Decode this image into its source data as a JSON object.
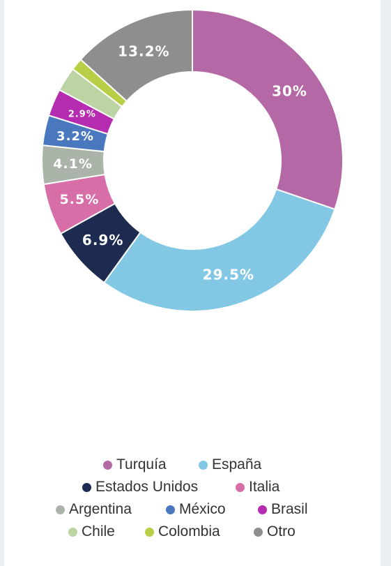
{
  "chart_data": {
    "type": "pie",
    "donut": true,
    "slices": [
      {
        "name": "Turquía",
        "value": 30,
        "label": "30%",
        "color": "#b468a6"
      },
      {
        "name": "España",
        "value": 29.5,
        "label": "29.5%",
        "color": "#82c8e5"
      },
      {
        "name": "Estados Unidos",
        "value": 6.9,
        "label": "6.9%",
        "color": "#1c2b4f"
      },
      {
        "name": "Italia",
        "value": 5.5,
        "label": "5.5%",
        "color": "#d86ea8"
      },
      {
        "name": "Argentina",
        "value": 4.1,
        "label": "4.1%",
        "color": "#aab4a9"
      },
      {
        "name": "México",
        "value": 3.2,
        "label": "3.2%",
        "color": "#4a78bf"
      },
      {
        "name": "Brasil",
        "value": 2.9,
        "label": "2.9%",
        "color": "#b52cb0"
      },
      {
        "name": "Chile",
        "value": 2.6,
        "label": "",
        "color": "#bcd3a4"
      },
      {
        "name": "Colombia",
        "value": 1.3,
        "label": "",
        "color": "#b6cf47"
      },
      {
        "name": "Otro",
        "value": 13.2,
        "label": "13.2%",
        "color": "#8e8e8e"
      }
    ],
    "legend_position": "bottom"
  },
  "legend": {
    "rows": [
      [
        "Turquía",
        "España"
      ],
      [
        "Estados Unidos",
        "Italia"
      ],
      [
        "Argentina",
        "México",
        "Brasil"
      ],
      [
        "Chile",
        "Colombia",
        "Otro"
      ]
    ]
  }
}
